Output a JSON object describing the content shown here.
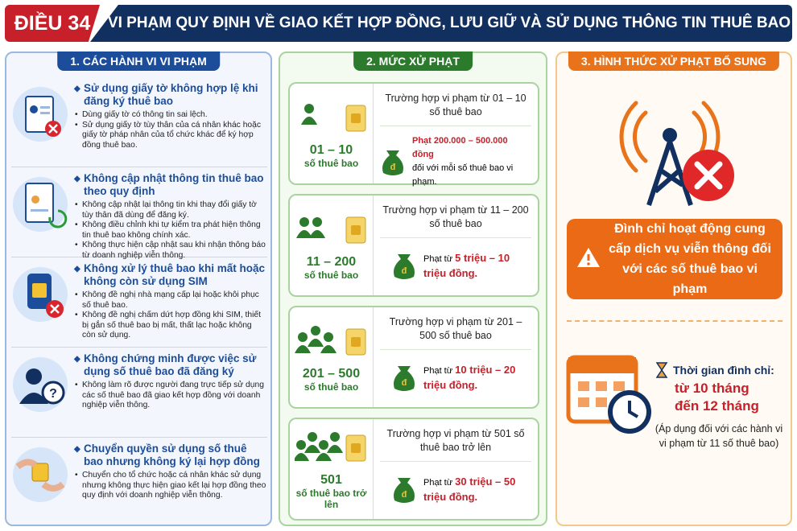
{
  "header": {
    "badge": "ĐIỀU 34",
    "title": "VI PHẠM QUY ĐỊNH VỀ GIAO KẾT HỢP ĐỒNG, LƯU GIỮ VÀ SỬ DỤNG THÔNG TIN THUÊ BAO"
  },
  "violations": {
    "title": "1. CÁC HÀNH VI VI PHẠM",
    "items": [
      {
        "heading": "Sử dụng giấy tờ không hợp lệ khi đăng ký thuê bao",
        "bullets": [
          "Dùng giấy tờ có thông tin sai lệch.",
          "Sử dụng giấy tờ tùy thân của cá nhân khác hoặc giấy tờ pháp nhân của tổ chức khác để ký hợp đồng thuê bao."
        ]
      },
      {
        "heading": "Không cập nhật thông tin thuê bao theo quy định",
        "bullets": [
          "Không cập nhật lại thông tin khi thay đổi giấy tờ tùy thân đã dùng để đăng ký.",
          "Không điều chỉnh khi tự kiểm tra phát hiện thông tin thuê bao không chính xác.",
          "Không thực hiện cập nhật sau khi nhận thông báo từ doanh nghiệp viễn thông."
        ]
      },
      {
        "heading": "Không xử lý thuê bao khi mất hoặc không còn sử dụng SIM",
        "bullets": [
          "Không đề nghị nhà mạng cấp lại hoặc khôi phục số thuê bao.",
          "Không đề nghị chấm dứt hợp đồng khi SIM, thiết bị gắn số thuê bao bị mất, thất lạc hoặc không còn sử dụng."
        ]
      },
      {
        "heading": "Không chứng minh được việc sử dụng số thuê bao đã đăng ký",
        "bullets": [
          "Không làm rõ được người đang trực tiếp sử dụng các số thuê bao đã giao kết hợp đồng với doanh nghiệp viễn thông."
        ]
      },
      {
        "heading": "Chuyển quyền sử dụng số thuê bao nhưng không ký lại hợp đồng",
        "bullets": [
          "Chuyển cho tổ chức hoặc cá nhân khác sử dụng nhưng không thực hiện giao kết lại hợp đồng theo quy định với doanh nghiệp viễn thông."
        ]
      }
    ]
  },
  "penalties": {
    "title": "2. MỨC XỬ PHẠT",
    "tiers": [
      {
        "range": "01 – 10",
        "unit": "số thuê bao",
        "case": "Trường hợp vi phạm từ 01 – 10 số thuê bao",
        "fine": "Phạt 200.000 – 500.000 đồng",
        "note": "đối với mỗi số thuê bao vi phạm."
      },
      {
        "range": "11 – 200",
        "unit": "số thuê bao",
        "case": "Trường hợp vi phạm từ 11 – 200 số thuê bao",
        "fine_prefix": "Phạt từ",
        "fine_amount": "5 triệu – 10 triệu đồng."
      },
      {
        "range": "201 – 500",
        "unit": "số thuê bao",
        "case": "Trường hợp vi phạm từ 201 – 500 số thuê bao",
        "fine_prefix": "Phạt từ",
        "fine_amount": "10 triệu – 20 triệu đồng."
      },
      {
        "range": "501",
        "unit": "số thuê bao trở lên",
        "case": "Trường hợp vi phạm từ 501 số thuê bao trở lên",
        "fine_prefix": "Phạt từ",
        "fine_amount": "30 triệu – 50 triệu đồng."
      }
    ]
  },
  "additional": {
    "title": "3. HÌNH THỨC XỬ PHẠT BỔ SUNG",
    "warning": "Đình chỉ hoạt động cung cấp dịch vụ viễn thông đối với các số thuê bao vi phạm",
    "duration_label": "Thời gian đình chỉ:",
    "duration": "từ 10 tháng đến 12 tháng",
    "note": "(Áp dụng đối với các hành vi vi phạm từ 11 số thuê bao)"
  }
}
